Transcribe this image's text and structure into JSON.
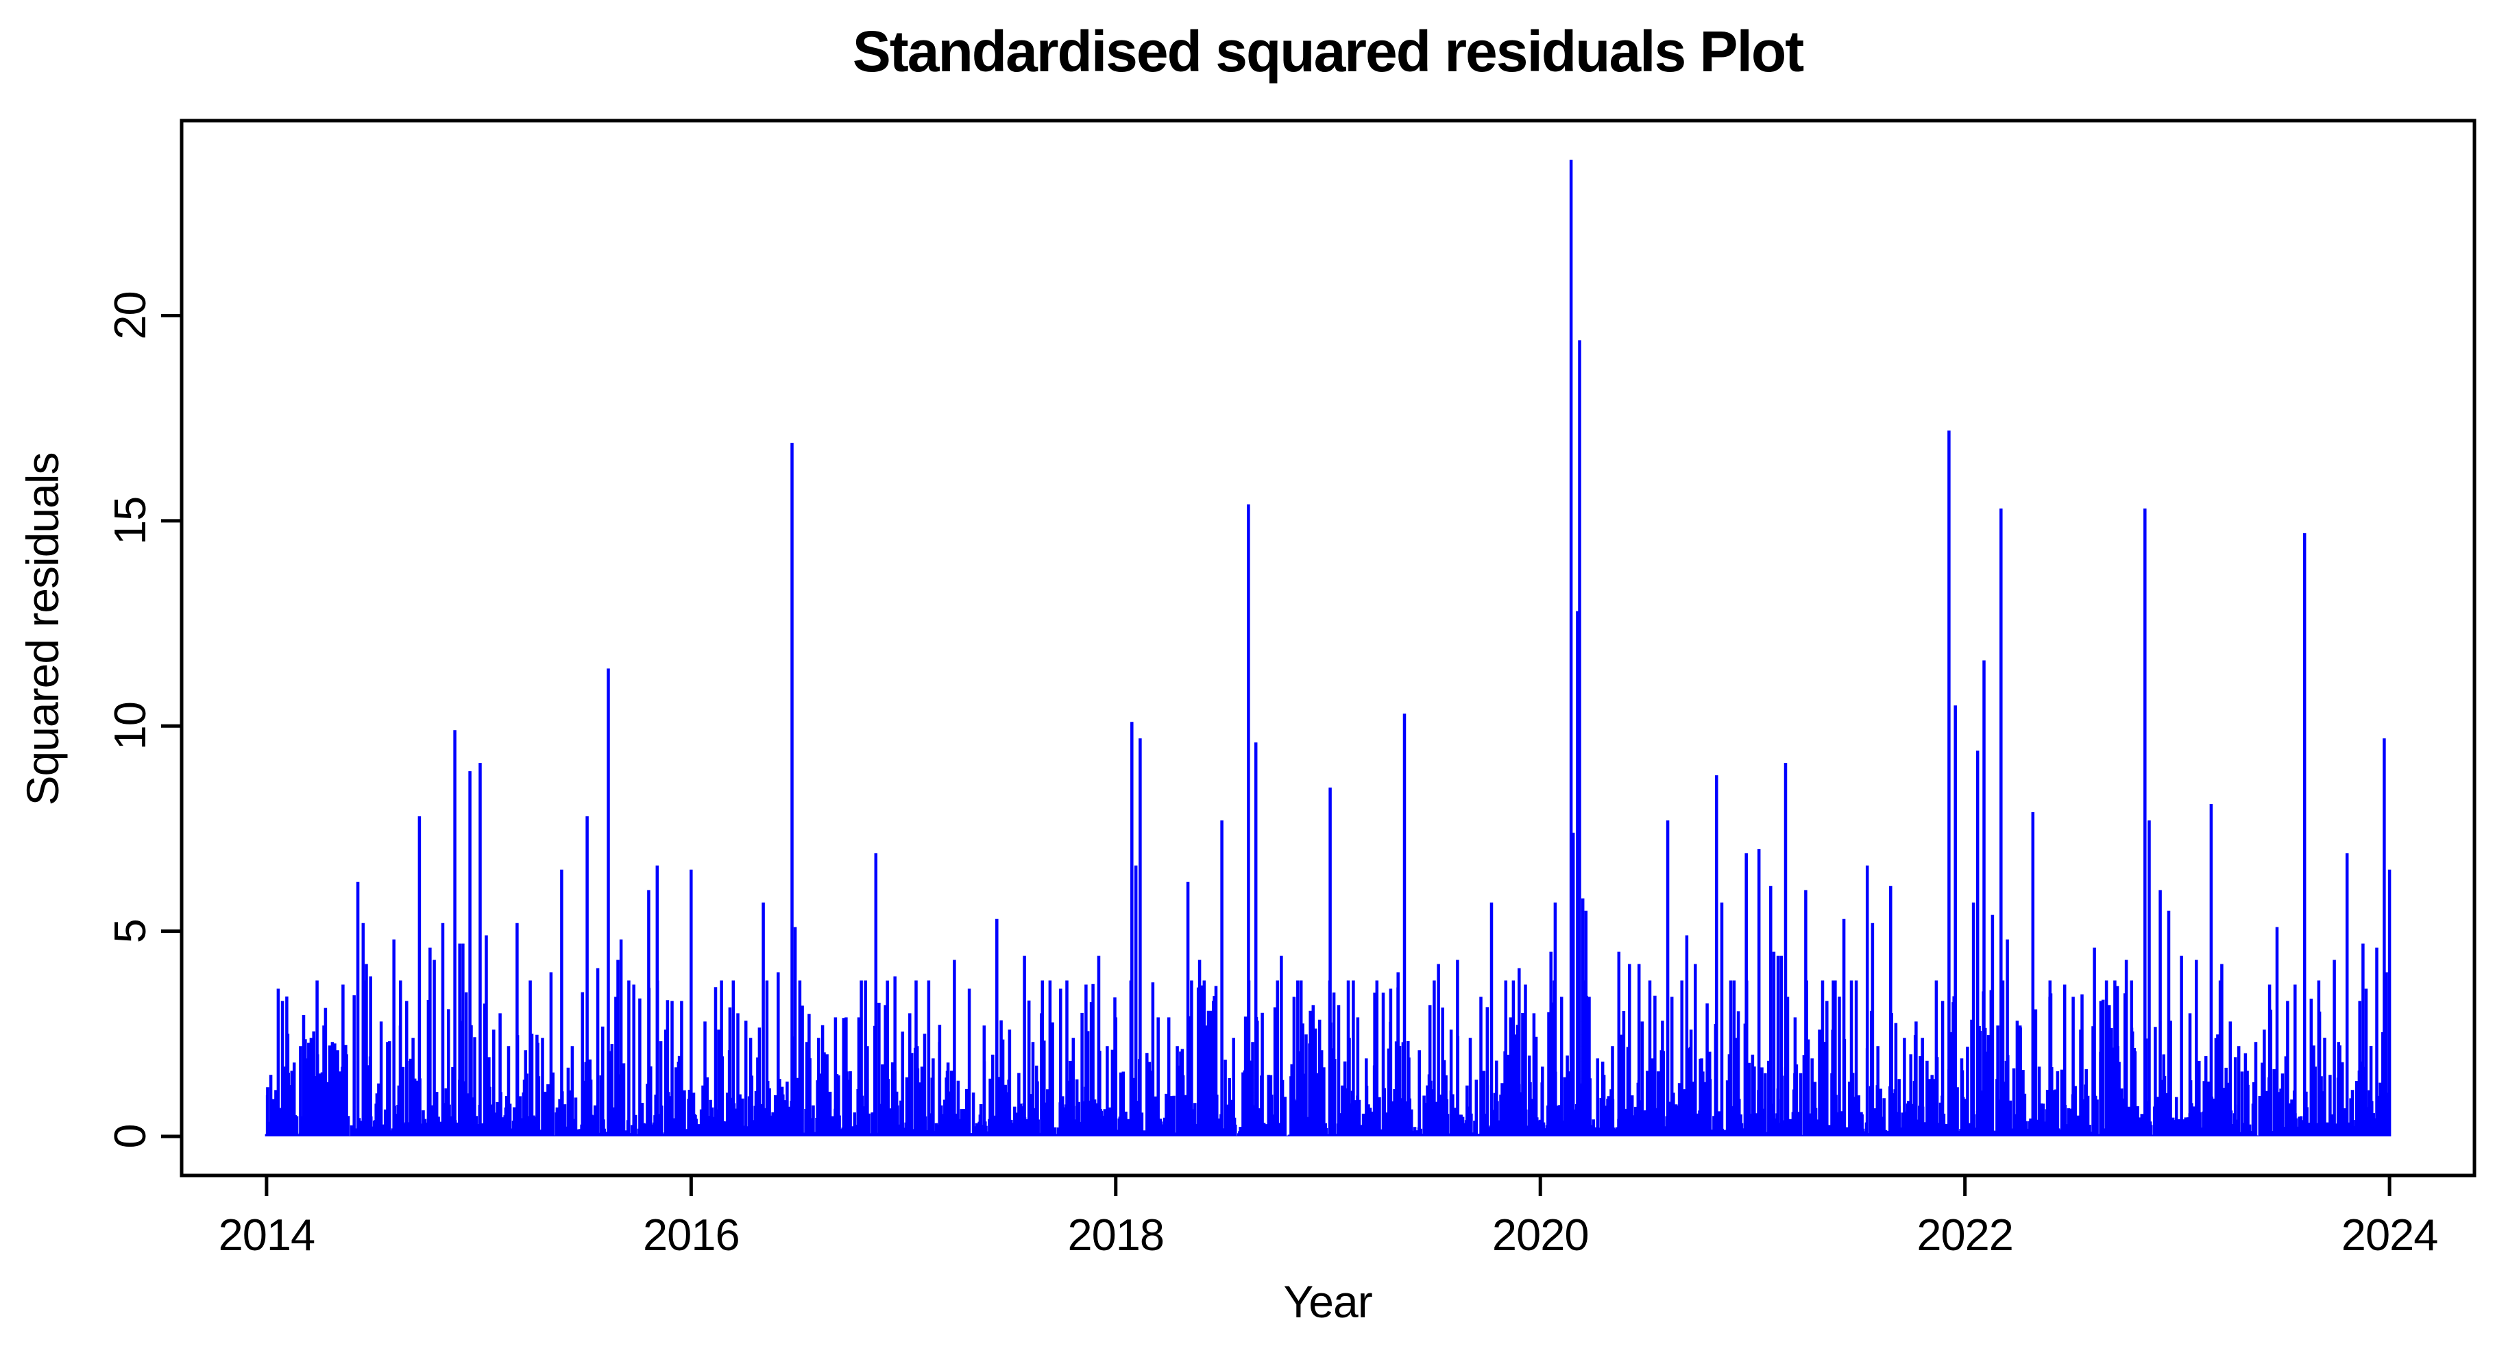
{
  "chart_data": {
    "type": "line",
    "style": "R-base vertical spike series (plot type='h')",
    "title": "Standardised squared residuals Plot",
    "xlabel": "Year",
    "ylabel": "Squared residuals",
    "x_ticks": [
      2014,
      2016,
      2018,
      2020,
      2022,
      2024
    ],
    "y_ticks": [
      0,
      5,
      10,
      15,
      20
    ],
    "xlim": [
      2014,
      2024
    ],
    "ylim": [
      0,
      23.8
    ],
    "axis_expansion": 0.04,
    "grid": false,
    "legend": "none",
    "background_color": "#FFFFFF",
    "axis_color": "#000000",
    "series": [
      {
        "name": "squared residuals",
        "color": "#0000FF",
        "spikes": [
          [
            2014.005,
            1.2
          ],
          [
            2014.02,
            1.5
          ],
          [
            2014.055,
            3.6
          ],
          [
            2014.075,
            3.3
          ],
          [
            2014.1,
            2.5
          ],
          [
            2014.13,
            1.8
          ],
          [
            2014.16,
            2.2
          ],
          [
            2014.185,
            1.9
          ],
          [
            2014.21,
            2.4
          ],
          [
            2014.24,
            2.0
          ],
          [
            2014.27,
            2.7
          ],
          [
            2014.31,
            2.3
          ],
          [
            2014.335,
            2.1
          ],
          [
            2014.36,
            3.7
          ],
          [
            2014.43,
            6.2
          ],
          [
            2014.455,
            5.2
          ],
          [
            2014.47,
            4.2
          ],
          [
            2014.49,
            3.9
          ],
          [
            2014.54,
            2.8
          ],
          [
            2014.57,
            2.3
          ],
          [
            2014.6,
            4.8
          ],
          [
            2014.63,
            2.7
          ],
          [
            2014.66,
            3.3
          ],
          [
            2014.69,
            2.4
          ],
          [
            2014.72,
            7.8
          ],
          [
            2014.77,
            4.6
          ],
          [
            2014.79,
            4.3
          ],
          [
            2014.83,
            5.2
          ],
          [
            2014.857,
            3.1
          ],
          [
            2014.887,
            9.9
          ],
          [
            2014.91,
            4.7
          ],
          [
            2014.925,
            4.7
          ],
          [
            2014.958,
            8.9
          ],
          [
            2015.006,
            9.1
          ],
          [
            2015.035,
            4.9
          ],
          [
            2015.07,
            2.6
          ],
          [
            2015.1,
            3.0
          ],
          [
            2015.14,
            2.2
          ],
          [
            2015.18,
            5.2
          ],
          [
            2015.22,
            2.1
          ],
          [
            2015.25,
            2.5
          ],
          [
            2015.3,
            2.4
          ],
          [
            2015.34,
            4.0
          ],
          [
            2015.39,
            6.5
          ],
          [
            2015.44,
            2.2
          ],
          [
            2015.51,
            7.8
          ],
          [
            2015.56,
            4.1
          ],
          [
            2015.61,
            11.4
          ],
          [
            2015.645,
            3.4
          ],
          [
            2015.655,
            4.3
          ],
          [
            2015.67,
            4.8
          ],
          [
            2015.73,
            3.7
          ],
          [
            2015.8,
            6.0
          ],
          [
            2015.84,
            6.6
          ],
          [
            2015.88,
            2.6
          ],
          [
            2015.91,
            3.3
          ],
          [
            2015.955,
            3.3
          ],
          [
            2016.0,
            6.5
          ],
          [
            2016.065,
            2.8
          ],
          [
            2016.13,
            2.6
          ],
          [
            2016.18,
            2.1
          ],
          [
            2016.22,
            3.0
          ],
          [
            2016.28,
            2.4
          ],
          [
            2016.34,
            5.7
          ],
          [
            2016.41,
            4.0
          ],
          [
            2016.475,
            16.9
          ],
          [
            2016.49,
            5.1
          ],
          [
            2016.545,
            2.3
          ],
          [
            2016.6,
            2.4
          ],
          [
            2016.64,
            2.0
          ],
          [
            2016.68,
            2.9
          ],
          [
            2016.73,
            2.9
          ],
          [
            2016.79,
            2.9
          ],
          [
            2016.83,
            2.2
          ],
          [
            2016.87,
            6.9
          ],
          [
            2016.915,
            3.2
          ],
          [
            2016.96,
            3.9
          ],
          [
            2017.03,
            3.0
          ],
          [
            2017.065,
            2.2
          ],
          [
            2017.1,
            2.5
          ],
          [
            2017.14,
            1.9
          ],
          [
            2017.17,
            2.3
          ],
          [
            2017.21,
            1.8
          ],
          [
            2017.24,
            4.3
          ],
          [
            2017.31,
            3.6
          ],
          [
            2017.38,
            2.7
          ],
          [
            2017.44,
            5.3
          ],
          [
            2017.5,
            2.6
          ],
          [
            2017.57,
            4.4
          ],
          [
            2017.61,
            2.3
          ],
          [
            2017.65,
            3.0
          ],
          [
            2017.7,
            2.1
          ],
          [
            2017.74,
            3.6
          ],
          [
            2017.8,
            2.4
          ],
          [
            2017.86,
            3.7
          ],
          [
            2017.92,
            4.4
          ],
          [
            2017.96,
            2.2
          ],
          [
            2018.0,
            2.9
          ],
          [
            2018.076,
            10.1
          ],
          [
            2018.095,
            6.6
          ],
          [
            2018.115,
            9.7
          ],
          [
            2018.17,
            1.6
          ],
          [
            2018.2,
            2.9
          ],
          [
            2018.25,
            2.9
          ],
          [
            2018.29,
            2.2
          ],
          [
            2018.34,
            6.2
          ],
          [
            2018.395,
            4.3
          ],
          [
            2018.43,
            2.7
          ],
          [
            2018.46,
            3.3
          ],
          [
            2018.5,
            7.7
          ],
          [
            2018.555,
            2.4
          ],
          [
            2018.625,
            15.4
          ],
          [
            2018.645,
            2.3
          ],
          [
            2018.66,
            9.6
          ],
          [
            2018.72,
            1.5
          ],
          [
            2018.78,
            4.4
          ],
          [
            2018.84,
            3.4
          ],
          [
            2018.88,
            1.0
          ],
          [
            2018.93,
            3.2
          ],
          [
            2018.97,
            2.1
          ],
          [
            2019.01,
            8.5
          ],
          [
            2019.05,
            3.2
          ],
          [
            2019.1,
            2.4
          ],
          [
            2019.14,
            2.9
          ],
          [
            2019.18,
            1.9
          ],
          [
            2019.22,
            3.5
          ],
          [
            2019.26,
            3.5
          ],
          [
            2019.295,
            3.6
          ],
          [
            2019.33,
            4.0
          ],
          [
            2019.36,
            10.3
          ],
          [
            2019.43,
            2.1
          ],
          [
            2019.48,
            3.2
          ],
          [
            2019.52,
            4.2
          ],
          [
            2019.58,
            2.6
          ],
          [
            2019.61,
            4.3
          ],
          [
            2019.67,
            2.4
          ],
          [
            2019.72,
            3.4
          ],
          [
            2019.77,
            5.7
          ],
          [
            2019.82,
            1.3
          ],
          [
            2019.86,
            2.9
          ],
          [
            2019.9,
            4.1
          ],
          [
            2019.93,
            3.7
          ],
          [
            2019.97,
            3.0
          ],
          [
            2020.01,
            1.7
          ],
          [
            2020.05,
            4.5
          ],
          [
            2020.07,
            5.7
          ],
          [
            2020.1,
            3.4
          ],
          [
            2020.145,
            23.8
          ],
          [
            2020.155,
            7.4
          ],
          [
            2020.175,
            12.8
          ],
          [
            2020.185,
            19.4
          ],
          [
            2020.2,
            5.8
          ],
          [
            2020.215,
            5.5
          ],
          [
            2020.23,
            3.4
          ],
          [
            2020.27,
            1.9
          ],
          [
            2020.3,
            1.5
          ],
          [
            2020.34,
            2.2
          ],
          [
            2020.37,
            4.5
          ],
          [
            2020.42,
            4.2
          ],
          [
            2020.465,
            4.2
          ],
          [
            2020.48,
            2.8
          ],
          [
            2020.53,
            1.9
          ],
          [
            2020.57,
            2.1
          ],
          [
            2020.6,
            7.7
          ],
          [
            2020.62,
            3.4
          ],
          [
            2020.655,
            1.3
          ],
          [
            2020.69,
            4.9
          ],
          [
            2020.71,
            2.6
          ],
          [
            2020.73,
            4.2
          ],
          [
            2020.76,
            1.9
          ],
          [
            2020.8,
            1.4
          ],
          [
            2020.83,
            8.8
          ],
          [
            2020.855,
            5.7
          ],
          [
            2020.89,
            2.0
          ],
          [
            2020.92,
            2.4
          ],
          [
            2020.97,
            6.9
          ],
          [
            2021.03,
            7.0
          ],
          [
            2021.085,
            6.1
          ],
          [
            2021.1,
            4.5
          ],
          [
            2021.12,
            4.4
          ],
          [
            2021.135,
            4.4
          ],
          [
            2021.155,
            9.1
          ],
          [
            2021.165,
            3.4
          ],
          [
            2021.2,
            2.9
          ],
          [
            2021.25,
            6.0
          ],
          [
            2021.28,
            1.9
          ],
          [
            2021.315,
            2.6
          ],
          [
            2021.35,
            3.3
          ],
          [
            2021.38,
            3.8
          ],
          [
            2021.43,
            5.3
          ],
          [
            2021.465,
            3.8
          ],
          [
            2021.5,
            1.0
          ],
          [
            2021.54,
            6.6
          ],
          [
            2021.565,
            5.2
          ],
          [
            2021.59,
            2.2
          ],
          [
            2021.65,
            6.1
          ],
          [
            2021.69,
            1.4
          ],
          [
            2021.715,
            2.4
          ],
          [
            2021.745,
            2.0
          ],
          [
            2021.77,
            2.8
          ],
          [
            2021.8,
            2.4
          ],
          [
            2021.835,
            1.4
          ],
          [
            2021.865,
            2.0
          ],
          [
            2021.895,
            3.3
          ],
          [
            2021.925,
            17.2
          ],
          [
            2021.955,
            10.5
          ],
          [
            2021.985,
            1.9
          ],
          [
            2022.04,
            5.7
          ],
          [
            2022.06,
            9.4
          ],
          [
            2022.09,
            11.6
          ],
          [
            2022.13,
            5.4
          ],
          [
            2022.17,
            15.3
          ],
          [
            2022.2,
            4.8
          ],
          [
            2022.26,
            2.7
          ],
          [
            2022.32,
            7.9
          ],
          [
            2022.35,
            1.7
          ],
          [
            2022.4,
            3.4
          ],
          [
            2022.47,
            3.7
          ],
          [
            2022.51,
            3.4
          ],
          [
            2022.545,
            2.6
          ],
          [
            2022.61,
            4.6
          ],
          [
            2022.64,
            3.3
          ],
          [
            2022.68,
            3.2
          ],
          [
            2022.72,
            2.2
          ],
          [
            2022.76,
            4.3
          ],
          [
            2022.785,
            3.8
          ],
          [
            2022.848,
            15.3
          ],
          [
            2022.868,
            7.7
          ],
          [
            2022.92,
            6.0
          ],
          [
            2022.96,
            5.5
          ],
          [
            2023.02,
            4.4
          ],
          [
            2023.06,
            3.0
          ],
          [
            2023.09,
            4.3
          ],
          [
            2023.16,
            8.1
          ],
          [
            2023.21,
            4.2
          ],
          [
            2023.25,
            2.8
          ],
          [
            2023.29,
            2.2
          ],
          [
            2023.33,
            1.6
          ],
          [
            2023.37,
            2.3
          ],
          [
            2023.41,
            2.6
          ],
          [
            2023.435,
            3.7
          ],
          [
            2023.47,
            5.1
          ],
          [
            2023.52,
            3.3
          ],
          [
            2023.555,
            3.7
          ],
          [
            2023.6,
            14.7
          ],
          [
            2023.65,
            1.7
          ],
          [
            2023.69,
            1.1
          ],
          [
            2023.72,
            1.5
          ],
          [
            2023.74,
            4.3
          ],
          [
            2023.76,
            2.3
          ],
          [
            2023.8,
            6.9
          ],
          [
            2023.84,
            0.4
          ],
          [
            2023.86,
            3.3
          ],
          [
            2023.875,
            4.7
          ],
          [
            2023.89,
            3.6
          ],
          [
            2023.94,
            4.6
          ],
          [
            2023.975,
            9.7
          ],
          [
            2023.985,
            4.0
          ],
          [
            2024.0,
            6.5
          ]
        ],
        "background_noise": {
          "description": "dense low-level daily squared residuals forming solid band near zero",
          "seed": 20140101,
          "points_per_year": 252,
          "scale": 0.7,
          "cap": 3.8
        }
      }
    ]
  }
}
